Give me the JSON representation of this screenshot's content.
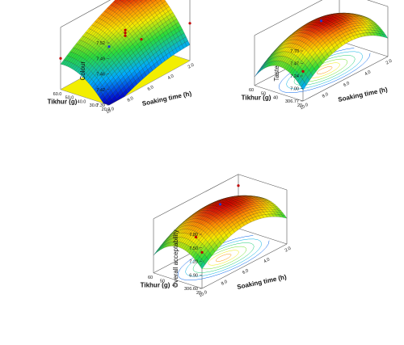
{
  "chart_data": [
    {
      "type": "surface",
      "zlabel": "Colour",
      "xlabel": "Soaking time (h)",
      "ylabel": "Tikhur (g)",
      "z_ticks": [
        "7.52",
        "7.49",
        "7.46",
        "7.42",
        "7.39"
      ],
      "x_ticks": [
        "10.0",
        "8.0",
        "6.0",
        "4.0",
        "2.0"
      ],
      "y_ticks": [
        "20.0",
        "30.0",
        "40.0",
        "50.0",
        "60.0"
      ],
      "xlim": [
        2,
        10
      ],
      "ylim": [
        20,
        60
      ],
      "zlim": [
        7.39,
        7.52
      ],
      "design_points": [
        {
          "x": 6,
          "y": 40,
          "z": 7.472
        },
        {
          "x": 6,
          "y": 40,
          "z": 7.478
        },
        {
          "x": 6,
          "y": 40,
          "z": 7.484
        },
        {
          "x": 10,
          "y": 60,
          "z": 7.512
        },
        {
          "x": 2,
          "y": 20,
          "z": 7.402
        },
        {
          "x": 2,
          "y": 60,
          "z": 7.468
        },
        {
          "x": 10,
          "y": 20,
          "z": 7.455
        }
      ],
      "contour_floor": "yellow plane"
    },
    {
      "type": "surface",
      "zlabel": "Taste",
      "xlabel": "Soaking time (h)",
      "ylabel": "Tikhur (g)",
      "z_ticks": [
        "7.70",
        "7.47",
        "7.24",
        "7.00",
        "6.77"
      ],
      "x_ticks": [
        "10.0",
        "8.0",
        "6.0",
        "4.0",
        "2.0"
      ],
      "y_ticks": [
        "20",
        "30",
        "40",
        "50",
        "60"
      ],
      "xlim": [
        2,
        10
      ],
      "ylim": [
        20,
        60
      ],
      "zlim": [
        6.77,
        7.7
      ],
      "design_points": [
        {
          "x": 6,
          "y": 40,
          "z": 7.7
        },
        {
          "x": 2,
          "y": 20,
          "z": 7.62
        },
        {
          "x": 10,
          "y": 60,
          "z": 7.32
        }
      ],
      "contour_floor": "rainbow contours"
    },
    {
      "type": "surface",
      "zlabel": "Overall acceptability",
      "xlabel": "Soaking time (h)",
      "ylabel": "Tikhur (g)",
      "z_ticks": [
        "7.80",
        "7.50",
        "7.20",
        "6.90",
        "6.60"
      ],
      "x_ticks": [
        "10.0",
        "8.0",
        "6.0",
        "4.0",
        "2.0"
      ],
      "y_ticks": [
        "20",
        "30",
        "40",
        "50",
        "60"
      ],
      "xlim": [
        2,
        10
      ],
      "ylim": [
        20,
        60
      ],
      "zlim": [
        6.6,
        7.8
      ],
      "design_points": [
        {
          "x": 6,
          "y": 40,
          "z": 7.8
        },
        {
          "x": 2,
          "y": 20,
          "z": 7.55
        },
        {
          "x": 10,
          "y": 60,
          "z": 7.4
        },
        {
          "x": 6,
          "y": 20,
          "z": 6.9
        }
      ],
      "contour_floor": "rainbow contours"
    }
  ]
}
